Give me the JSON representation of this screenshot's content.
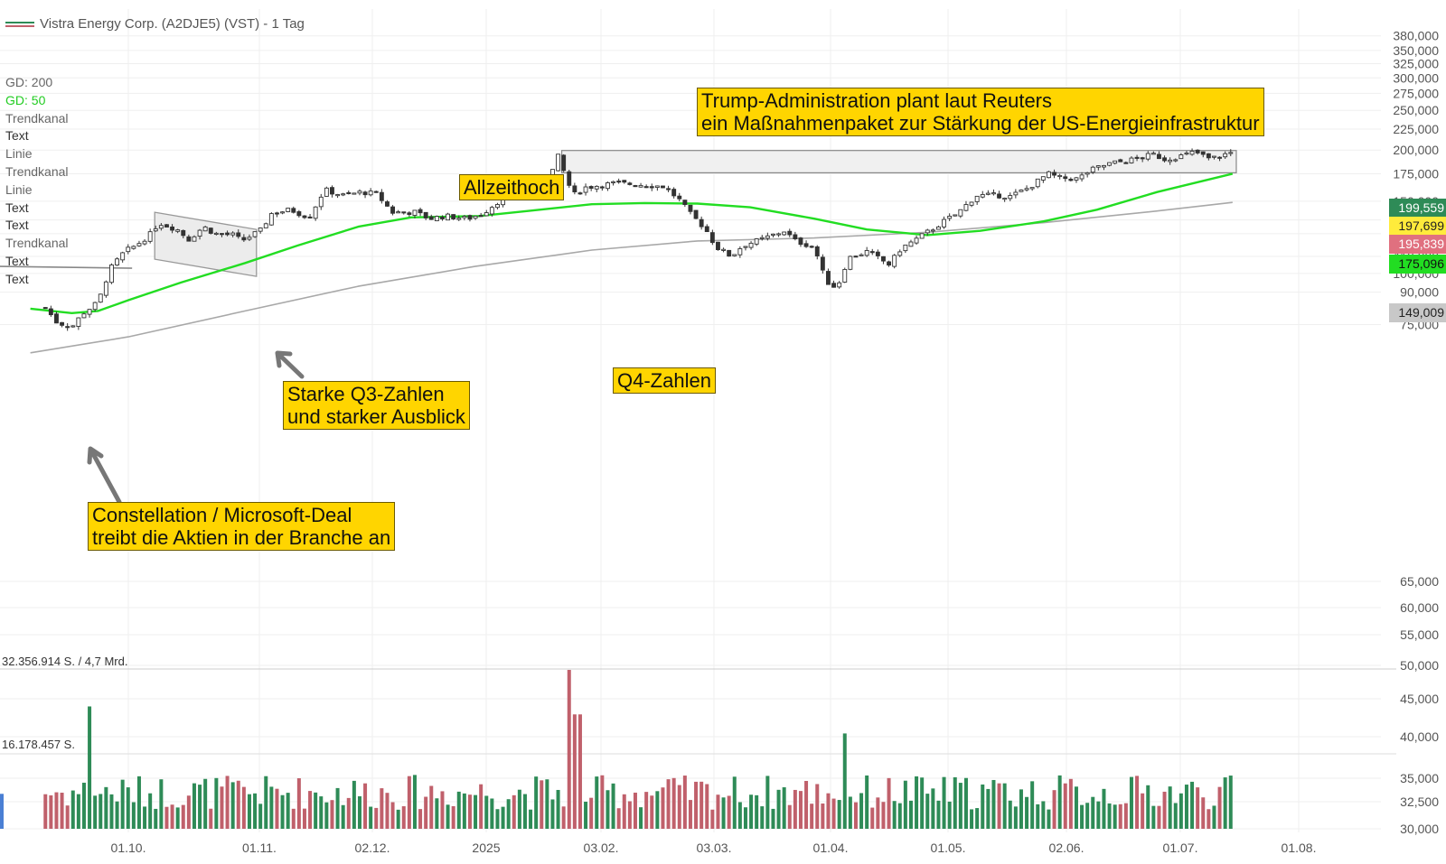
{
  "header": {
    "title": "Vistra Energy Corp. (A2DJE5) (VST) - 1 Tag"
  },
  "indicators": [
    {
      "label": "GD: 200",
      "kind": "gd200"
    },
    {
      "label": "GD: 50",
      "kind": "gd50"
    },
    {
      "label": "Trendkanal",
      "kind": "plain"
    },
    {
      "label": "Text",
      "kind": "txt"
    },
    {
      "label": "Linie",
      "kind": "plain"
    },
    {
      "label": "Trendkanal",
      "kind": "plain"
    },
    {
      "label": "Linie",
      "kind": "plain"
    },
    {
      "label": "Text",
      "kind": "txt"
    },
    {
      "label": "Text",
      "kind": "txt"
    },
    {
      "label": "Trendkanal",
      "kind": "plain"
    },
    {
      "label": "Text",
      "kind": "txt"
    },
    {
      "label": "Text",
      "kind": "txt"
    }
  ],
  "annotations": {
    "trump": "Trump-Administration plant laut Reuters\nein Maßnahmenpaket zur Stärkung der US-Energieinfrastruktur",
    "allzeithoch": "Allzeithoch",
    "q3": "Starke Q3-Zahlen\nund starker Ausblick",
    "q4": "Q4-Zahlen",
    "constellation": "Constellation / Microsoft-Deal\ntreibt die Aktien in der Branche an"
  },
  "badges": [
    {
      "value": "199,559",
      "bg": "#2e8b57",
      "fg": "#ffffff",
      "price": 199.559
    },
    {
      "value": "197,699",
      "bg": "#ffeb3b",
      "fg": "#222222",
      "price": 197.699
    },
    {
      "value": "195,839",
      "bg": "#e0707f",
      "fg": "#ffffff",
      "price": 195.839
    },
    {
      "value": "175,096",
      "bg": "#22dd22",
      "fg": "#111111",
      "price": 175.096
    },
    {
      "value": "149,009",
      "bg": "#c8c8c8",
      "fg": "#222222",
      "price": 149.009
    }
  ],
  "volume": {
    "max_label": "32.356.914 S. / 4,7 Mrd.",
    "mid_label": "16.178.457 S."
  },
  "colors": {
    "up": "#2e8b57",
    "down": "#c0606b",
    "gd50": "#22dd22",
    "gd200": "#a8a8a8",
    "grid": "#efefef"
  },
  "chart_data": {
    "type": "candlestick",
    "title": "Vistra Energy Corp. (A2DJE5) (VST) - 1 Tag",
    "y_axis": {
      "scale": "log",
      "ticks": [
        "380,000",
        "350,000",
        "325,000",
        "300,000",
        "275,000",
        "250,000",
        "225,000",
        "200,000",
        "175,000",
        "150,000",
        "135,000",
        "125,000",
        "110,000",
        "100,000",
        "90,000",
        "75,000",
        "65,000",
        "60,000",
        "55,000",
        "50,000",
        "45,000",
        "40,000",
        "35,000",
        "32,500",
        "30,000"
      ]
    },
    "x_axis": {
      "ticks": [
        "01.10.",
        "01.11.",
        "02.12.",
        "2025",
        "03.02.",
        "03.03.",
        "01.04.",
        "01.05.",
        "02.06.",
        "01.07.",
        "01.08."
      ]
    },
    "close_path": [
      [
        "2024-09-09",
        82.5
      ],
      [
        "2024-09-12",
        76
      ],
      [
        "2024-09-16",
        74
      ],
      [
        "2024-09-19",
        80
      ],
      [
        "2024-09-23",
        85
      ],
      [
        "2024-09-26",
        102
      ],
      [
        "2024-09-30",
        113
      ],
      [
        "2024-10-03",
        117
      ],
      [
        "2024-10-07",
        125
      ],
      [
        "2024-10-09",
        133
      ],
      [
        "2024-10-14",
        128
      ],
      [
        "2024-10-17",
        121
      ],
      [
        "2024-10-21",
        130
      ],
      [
        "2024-10-24",
        125
      ],
      [
        "2024-10-29",
        124
      ],
      [
        "2024-10-31",
        120
      ],
      [
        "2024-11-05",
        127
      ],
      [
        "2024-11-08",
        140
      ],
      [
        "2024-11-13",
        143
      ],
      [
        "2024-11-18",
        137
      ],
      [
        "2024-11-22",
        160
      ],
      [
        "2024-11-27",
        155
      ],
      [
        "2024-12-02",
        158
      ],
      [
        "2024-12-06",
        156
      ],
      [
        "2024-12-10",
        141
      ],
      [
        "2024-12-16",
        141
      ],
      [
        "2024-12-20",
        136
      ],
      [
        "2024-12-24",
        138
      ],
      [
        "2024-12-30",
        136
      ],
      [
        "2025-01-03",
        140
      ],
      [
        "2025-01-08",
        152
      ],
      [
        "2025-01-13",
        155
      ],
      [
        "2025-01-16",
        162
      ],
      [
        "2025-01-21",
        173
      ],
      [
        "2025-01-23",
        193
      ],
      [
        "2025-01-27",
        155
      ],
      [
        "2025-01-30",
        162
      ],
      [
        "2025-02-03",
        164
      ],
      [
        "2025-02-07",
        166
      ],
      [
        "2025-02-13",
        165
      ],
      [
        "2025-02-20",
        163
      ],
      [
        "2025-02-24",
        152
      ],
      [
        "2025-02-27",
        140
      ],
      [
        "2025-03-03",
        129
      ],
      [
        "2025-03-06",
        116
      ],
      [
        "2025-03-10",
        110
      ],
      [
        "2025-03-13",
        117
      ],
      [
        "2025-03-18",
        121
      ],
      [
        "2025-03-24",
        127
      ],
      [
        "2025-03-27",
        120
      ],
      [
        "2025-04-01",
        116
      ],
      [
        "2025-04-04",
        96
      ],
      [
        "2025-04-07",
        92
      ],
      [
        "2025-04-10",
        109
      ],
      [
        "2025-04-15",
        113
      ],
      [
        "2025-04-21",
        105
      ],
      [
        "2025-04-24",
        115
      ],
      [
        "2025-04-28",
        121
      ],
      [
        "2025-05-01",
        126
      ],
      [
        "2025-05-06",
        135
      ],
      [
        "2025-05-09",
        140
      ],
      [
        "2025-05-14",
        155
      ],
      [
        "2025-05-20",
        155
      ],
      [
        "2025-05-23",
        154
      ],
      [
        "2025-05-28",
        162
      ],
      [
        "2025-06-02",
        175
      ],
      [
        "2025-06-05",
        171
      ],
      [
        "2025-06-10",
        170
      ],
      [
        "2025-06-13",
        178
      ],
      [
        "2025-06-18",
        185
      ],
      [
        "2025-06-24",
        189
      ],
      [
        "2025-06-30",
        195
      ],
      [
        "2025-07-03",
        190
      ],
      [
        "2025-07-08",
        194
      ],
      [
        "2025-07-11",
        198
      ],
      [
        "2025-07-15",
        190
      ],
      [
        "2025-07-18",
        194
      ],
      [
        "2025-07-21",
        197.699
      ]
    ],
    "gd50_path": [
      [
        "2024-09-05",
        82
      ],
      [
        "2024-09-16",
        80
      ],
      [
        "2024-09-23",
        81
      ],
      [
        "2024-10-01",
        86
      ],
      [
        "2024-10-15",
        95
      ],
      [
        "2024-11-01",
        106
      ],
      [
        "2024-11-15",
        117
      ],
      [
        "2024-12-01",
        130
      ],
      [
        "2024-12-15",
        137
      ],
      [
        "2025-01-02",
        138
      ],
      [
        "2025-01-15",
        142
      ],
      [
        "2025-02-01",
        147.5
      ],
      [
        "2025-02-15",
        148.5
      ],
      [
        "2025-03-01",
        148
      ],
      [
        "2025-03-15",
        145
      ],
      [
        "2025-04-01",
        136
      ],
      [
        "2025-04-15",
        128
      ],
      [
        "2025-05-01",
        124
      ],
      [
        "2025-05-15",
        127
      ],
      [
        "2025-06-01",
        134
      ],
      [
        "2025-06-15",
        143
      ],
      [
        "2025-07-01",
        158
      ],
      [
        "2025-07-21",
        175.096
      ]
    ],
    "gd200_path": [
      [
        "2024-09-05",
        64
      ],
      [
        "2024-10-01",
        70
      ],
      [
        "2024-11-01",
        81
      ],
      [
        "2024-12-01",
        93
      ],
      [
        "2025-01-01",
        104
      ],
      [
        "2025-02-01",
        114
      ],
      [
        "2025-03-01",
        120
      ],
      [
        "2025-04-01",
        122
      ],
      [
        "2025-05-01",
        126
      ],
      [
        "2025-06-01",
        133
      ],
      [
        "2025-07-01",
        142
      ],
      [
        "2025-07-21",
        149.009
      ]
    ],
    "channels": [
      {
        "name": "Trendkanal 1",
        "p1": [
          "2024-10-08",
          141
        ],
        "p2": [
          "2024-11-04",
          128
        ],
        "width_ratio": 0.88
      },
      {
        "name": "Trendkanal 2",
        "p1": [
          "2025-01-24",
          199.5
        ],
        "p2": [
          "2025-07-22",
          199.5
        ],
        "low": 176
      }
    ],
    "lines": [
      {
        "name": "Linie",
        "p1": [
          "2024-09-05",
          104
        ],
        "p2": [
          "2024-10-02",
          104
        ]
      }
    ],
    "volume_max": 32356914
  }
}
